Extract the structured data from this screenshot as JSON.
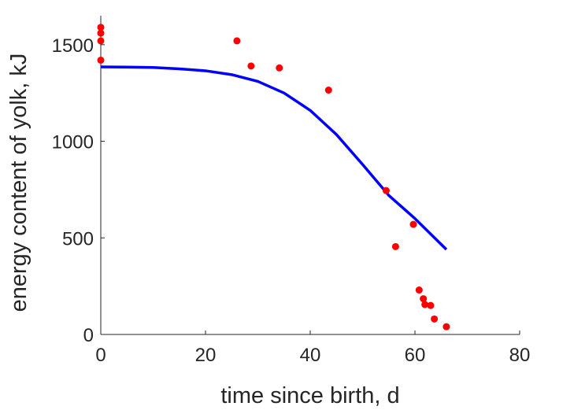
{
  "chart_data": {
    "type": "scatter",
    "title": "",
    "xlabel": "time since birth, d",
    "ylabel": "energy content of yolk, kJ",
    "xlim": [
      0,
      80
    ],
    "ylim": [
      0,
      1650
    ],
    "xticks": [
      0,
      20,
      40,
      60,
      80
    ],
    "yticks": [
      0,
      500,
      1000,
      1500
    ],
    "grid": false,
    "legend": "none",
    "colors": {
      "points": "#ff0000",
      "fit": "#0000ff",
      "axis": "#262626"
    },
    "series": [
      {
        "type": "scatter",
        "x": [
          0,
          0,
          0,
          0,
          26,
          28.7,
          34.1,
          43.5,
          54.5,
          56.3,
          59.7,
          60.8,
          61.6,
          61.9,
          63.0,
          63.7,
          66.0
        ],
        "y": [
          1590,
          1560,
          1520,
          1420,
          1520,
          1390,
          1380,
          1265,
          745,
          455,
          570,
          230,
          185,
          155,
          150,
          80,
          40
        ]
      },
      {
        "type": "line",
        "x": [
          0,
          5,
          10,
          15,
          20,
          25,
          30,
          35,
          40,
          45,
          50,
          55,
          60,
          66
        ],
        "y": [
          1385,
          1384,
          1382,
          1375,
          1365,
          1345,
          1310,
          1250,
          1160,
          1035,
          880,
          720,
          600,
          440
        ]
      }
    ]
  }
}
